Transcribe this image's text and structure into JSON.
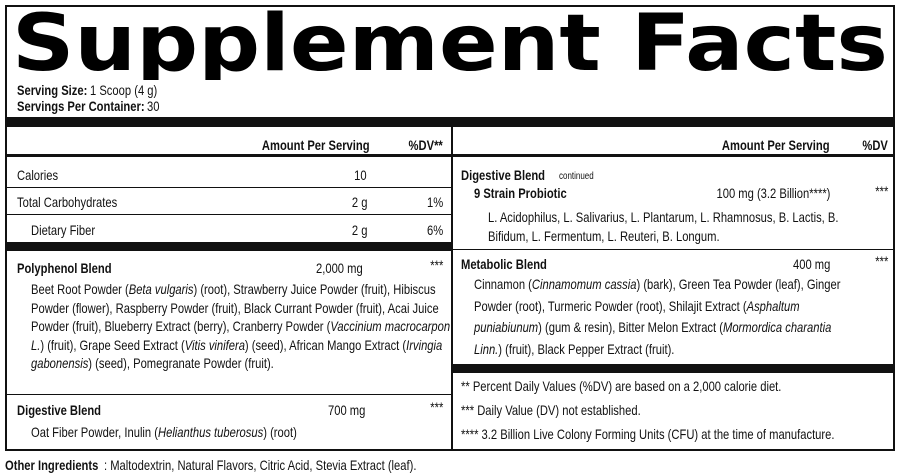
{
  "title": "Supplement Facts",
  "serving_size": {
    "label": "Serving Size:",
    "value": "1 Scoop (4 g)"
  },
  "servings_per_container": {
    "label": "Servings Per Container:",
    "value": "30"
  },
  "left": {
    "header": {
      "amount": "Amount Per Serving",
      "dv": "%DV**"
    },
    "rows": [
      {
        "name": "Calories",
        "amount": "10"
      },
      {
        "name": "Total Carbohydrates",
        "amount": "2 g",
        "dv": "1%"
      },
      {
        "name": "Dietary Fiber",
        "amount": "2 g",
        "dv": "6%"
      }
    ],
    "blends": [
      {
        "name": "Polyphenol Blend",
        "amount": "2,000 mg",
        "dv": "***",
        "lines": [
          [
            "Beet Root Powder (",
            {
              "text": "Beta vulgaris",
              "italic": true
            },
            ") (root), Strawberry Juice Powder (fruit), Hibiscus"
          ],
          [
            "Powder (flower), Raspberry Powder (fruit), Black Currant Powder (fruit), Acai Juice"
          ],
          [
            "Powder (fruit), Blueberry Extract (berry), Cranberry Powder (",
            {
              "text": "Vaccinium macrocarpon",
              "italic": true
            }
          ],
          [
            {
              "text": "L.",
              "italic": true
            },
            ") (fruit), Grape Seed Extract (",
            {
              "text": "Vitis vinifera",
              "italic": true
            },
            ")  (seed), African Mango Extract (",
            {
              "text": "Irvingia",
              "italic": true
            }
          ],
          [
            {
              "text": "gabonensis",
              "italic": true
            },
            ") (seed), Pomegranate Powder (fruit)."
          ]
        ]
      },
      {
        "name": "Digestive Blend",
        "amount": "700 mg",
        "dv": "***",
        "lines": [
          [
            "Oat Fiber Powder, Inulin (",
            {
              "text": "Helianthus tuberosus",
              "italic": true
            },
            ") (root)"
          ]
        ]
      }
    ]
  },
  "right": {
    "header": {
      "amount": "Amount Per Serving",
      "dv": "%DV"
    },
    "digestive_continued": {
      "name": "Digestive Blend",
      "note": "continued",
      "item": {
        "name": "9 Strain Probiotic",
        "amount": "100 mg (3.2 Billion****)",
        "dv": "***",
        "lines": [
          [
            "L. Acidophilus, L. Salivarius, L. Plantarum, L. Rhamnosus, B. Lactis, B."
          ],
          [
            "Bifidum, L. Fermentum, L. Reuteri, B. Longum."
          ]
        ]
      }
    },
    "metabolic": {
      "name": "Metabolic Blend",
      "amount": "400 mg",
      "dv": "***",
      "lines": [
        [
          "Cinnamon (",
          {
            "text": "Cinnamomum cassia",
            "italic": true
          },
          ") (bark), Green Tea Powder (leaf), Ginger"
        ],
        [
          "Powder (root), Turmeric Powder (root), Shilajit Extract (",
          {
            "text": "Asphaltum",
            "italic": true
          }
        ],
        [
          {
            "text": "puniabiunum",
            "italic": true
          },
          ") (gum & resin), Bitter Melon Extract (",
          {
            "text": "Mormordica charantia",
            "italic": true
          }
        ],
        [
          {
            "text": "Linn.",
            "italic": true
          },
          ") (fruit), Black Pepper Extract (fruit)."
        ]
      ]
    },
    "footnotes": [
      "** Percent Daily Values (%DV) are based on a 2,000 calorie diet.",
      "*** Daily Value (DV) not established.",
      "**** 3.2 Billion Live Colony Forming Units (CFU) at the time of manufacture."
    ]
  },
  "other_ingredients": {
    "label": "Other Ingredients",
    "text": ": Maltodextrin, Natural Flavors, Citric Acid, Stevia Extract (leaf)."
  }
}
